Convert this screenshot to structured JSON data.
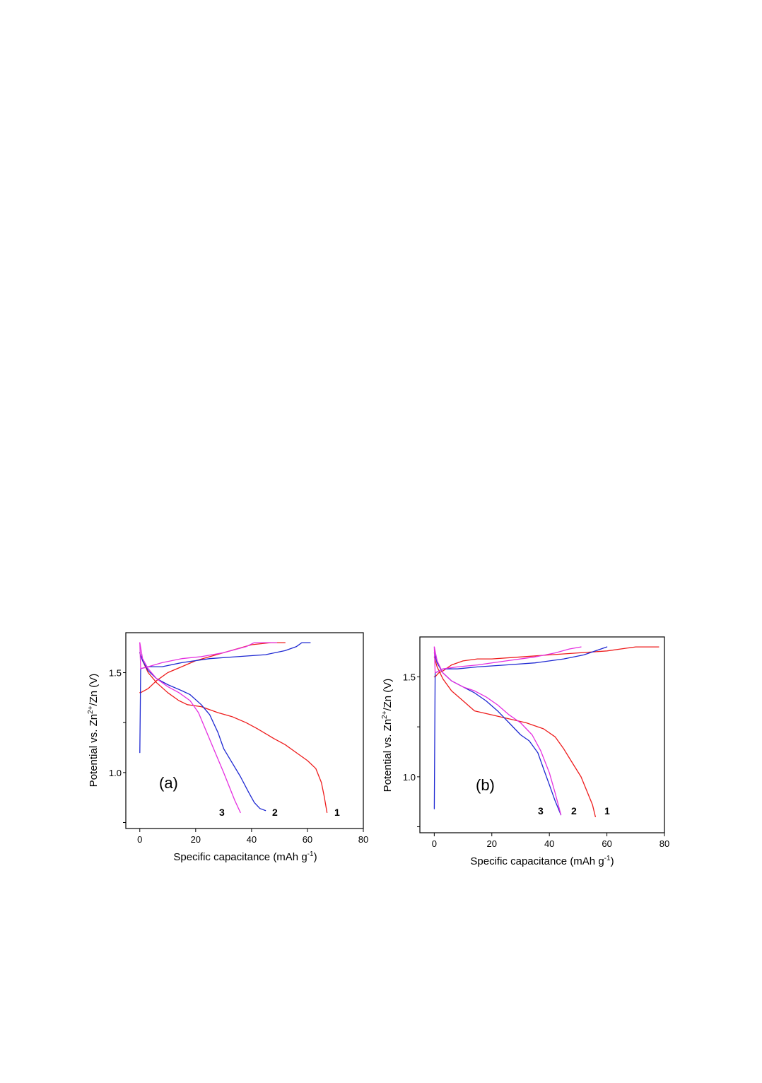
{
  "chart_data": [
    {
      "type": "line",
      "panel_label": "(a)",
      "xlabel": "Specific capacitance (mAh g",
      "xlabel_sup": "-1",
      "xlabel_close": ")",
      "ylabel": "Potential vs. Zn",
      "ylabel_sup": "2+",
      "ylabel_tail": "/Zn (V)",
      "xlim": [
        -5,
        80
      ],
      "ylim": [
        0.72,
        1.7
      ],
      "x_ticks": [
        "0",
        "20",
        "40",
        "60",
        "80"
      ],
      "y_ticks": [
        "1.0",
        "1.5"
      ],
      "grid": false,
      "curve_labels": [
        "1",
        "2",
        "3"
      ],
      "colors": {
        "1": "#ee1c1c",
        "2": "#1e28d2",
        "3": "#e52fe0"
      },
      "series": [
        {
          "name": "1",
          "segment": "charge",
          "x": [
            0,
            0.3,
            3,
            6,
            10,
            15,
            20,
            30,
            40,
            47,
            52
          ],
          "y": [
            1.4,
            1.4,
            1.42,
            1.46,
            1.5,
            1.53,
            1.56,
            1.6,
            1.64,
            1.65,
            1.65
          ]
        },
        {
          "name": "1",
          "segment": "discharge",
          "x": [
            0,
            1,
            3,
            6,
            10,
            14,
            17,
            22,
            28,
            33,
            38,
            42,
            48,
            52,
            56,
            60,
            63,
            65,
            66,
            67
          ],
          "y": [
            1.6,
            1.56,
            1.5,
            1.45,
            1.4,
            1.36,
            1.34,
            1.33,
            1.3,
            1.28,
            1.25,
            1.22,
            1.17,
            1.14,
            1.1,
            1.06,
            1.02,
            0.95,
            0.88,
            0.8
          ]
        },
        {
          "name": "2",
          "segment": "charge",
          "x": [
            0,
            0.3,
            3,
            8,
            15,
            25,
            35,
            45,
            52,
            56,
            58,
            61
          ],
          "y": [
            1.1,
            1.52,
            1.53,
            1.53,
            1.55,
            1.57,
            1.58,
            1.59,
            1.61,
            1.63,
            1.65,
            1.65
          ]
        },
        {
          "name": "2",
          "segment": "discharge",
          "x": [
            0,
            1,
            3,
            6,
            10,
            15,
            18,
            22,
            25,
            28,
            30,
            33,
            36,
            39,
            41,
            43,
            45
          ],
          "y": [
            1.6,
            1.56,
            1.51,
            1.47,
            1.44,
            1.41,
            1.39,
            1.34,
            1.29,
            1.2,
            1.12,
            1.05,
            0.98,
            0.9,
            0.85,
            0.82,
            0.81
          ]
        },
        {
          "name": "3",
          "segment": "charge",
          "x": [
            0,
            0.3,
            3,
            8,
            15,
            22,
            30,
            38,
            41,
            45,
            49
          ],
          "y": [
            1.65,
            1.52,
            1.53,
            1.55,
            1.57,
            1.58,
            1.6,
            1.63,
            1.65,
            1.65,
            1.65
          ]
        },
        {
          "name": "3",
          "segment": "discharge",
          "x": [
            0,
            1,
            3,
            6,
            10,
            14,
            18,
            21,
            24,
            27,
            30,
            32,
            34,
            36
          ],
          "y": [
            1.65,
            1.57,
            1.52,
            1.47,
            1.43,
            1.4,
            1.36,
            1.3,
            1.2,
            1.1,
            1.0,
            0.93,
            0.86,
            0.8
          ]
        }
      ]
    },
    {
      "type": "line",
      "panel_label": "(b)",
      "xlabel": "Specific capacitance (mAh g",
      "xlabel_sup": "-1",
      "xlabel_close": ")",
      "ylabel": "Potential vs. Zn",
      "ylabel_sup": "2+",
      "ylabel_tail": "/Zn (V)",
      "xlim": [
        -5,
        80
      ],
      "ylim": [
        0.72,
        1.7
      ],
      "x_ticks": [
        "0",
        "20",
        "40",
        "60",
        "80"
      ],
      "y_ticks": [
        "1.0",
        "1.5"
      ],
      "grid": false,
      "curve_labels": [
        "1",
        "2",
        "3"
      ],
      "colors": {
        "1": "#ee1c1c",
        "2": "#1e28d2",
        "3": "#e52fe0"
      },
      "series": [
        {
          "name": "1",
          "segment": "charge",
          "x": [
            0,
            0.3,
            1.5,
            3,
            6,
            10,
            15,
            20,
            30,
            40,
            50,
            60,
            70,
            78
          ],
          "y": [
            1.5,
            1.5,
            1.52,
            1.53,
            1.56,
            1.58,
            1.59,
            1.59,
            1.6,
            1.61,
            1.62,
            1.63,
            1.65,
            1.65
          ]
        },
        {
          "name": "1",
          "segment": "discharge",
          "x": [
            0,
            1,
            3,
            6,
            10,
            14,
            20,
            26,
            32,
            38,
            42,
            45,
            48,
            51,
            53,
            55,
            56
          ],
          "y": [
            1.6,
            1.55,
            1.49,
            1.43,
            1.38,
            1.33,
            1.31,
            1.29,
            1.27,
            1.24,
            1.2,
            1.14,
            1.07,
            1.0,
            0.93,
            0.86,
            0.8
          ]
        },
        {
          "name": "2",
          "segment": "charge",
          "x": [
            0,
            0.3,
            3,
            8,
            15,
            25,
            35,
            45,
            52,
            56,
            60
          ],
          "y": [
            0.84,
            1.52,
            1.54,
            1.54,
            1.55,
            1.56,
            1.57,
            1.59,
            1.61,
            1.63,
            1.65
          ]
        },
        {
          "name": "2",
          "segment": "discharge",
          "x": [
            0,
            1,
            3,
            6,
            10,
            14,
            18,
            22,
            26,
            30,
            33,
            36,
            38,
            40,
            42,
            44
          ],
          "y": [
            1.62,
            1.57,
            1.52,
            1.48,
            1.45,
            1.42,
            1.38,
            1.33,
            1.27,
            1.21,
            1.18,
            1.12,
            1.04,
            0.96,
            0.88,
            0.81
          ]
        },
        {
          "name": "3",
          "segment": "charge",
          "x": [
            0,
            0.3,
            3,
            8,
            15,
            25,
            35,
            42,
            47,
            51
          ],
          "y": [
            1.65,
            1.52,
            1.54,
            1.55,
            1.56,
            1.58,
            1.6,
            1.62,
            1.64,
            1.65
          ]
        },
        {
          "name": "3",
          "segment": "discharge",
          "x": [
            0,
            1,
            3,
            6,
            10,
            14,
            18,
            22,
            26,
            30,
            34,
            37,
            40,
            42,
            44
          ],
          "y": [
            1.65,
            1.58,
            1.52,
            1.48,
            1.45,
            1.43,
            1.4,
            1.36,
            1.31,
            1.27,
            1.21,
            1.13,
            1.02,
            0.92,
            0.81
          ]
        }
      ]
    }
  ]
}
